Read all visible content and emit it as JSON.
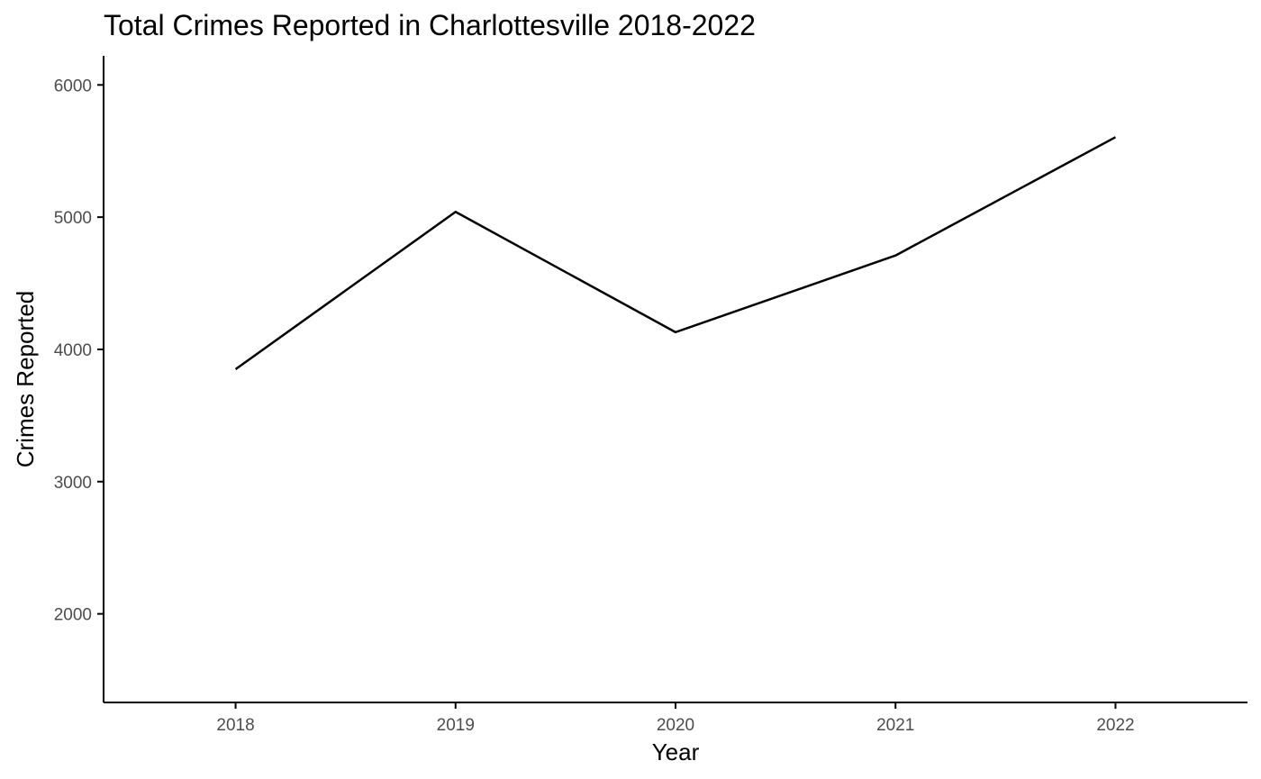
{
  "chart_data": {
    "type": "line",
    "title": "Total Crimes Reported in Charlottesville 2018-2022",
    "xlabel": "Year",
    "ylabel": "Crimes Reported",
    "x": [
      2018,
      2019,
      2020,
      2021,
      2022
    ],
    "x_tick_labels": [
      "2018",
      "2019",
      "2020",
      "2021",
      "2022"
    ],
    "series": [
      {
        "values": [
          3850,
          5040,
          4130,
          4710,
          5605
        ],
        "color": "#000000"
      }
    ],
    "y_ticks": [
      2000,
      3000,
      4000,
      5000,
      6000
    ],
    "y_tick_labels": [
      "2000",
      "3000",
      "4000",
      "5000",
      "6000"
    ],
    "xlim": [
      2017.4,
      2022.6
    ],
    "ylim": [
      1330,
      6220
    ],
    "grid": false,
    "legend": "none"
  }
}
